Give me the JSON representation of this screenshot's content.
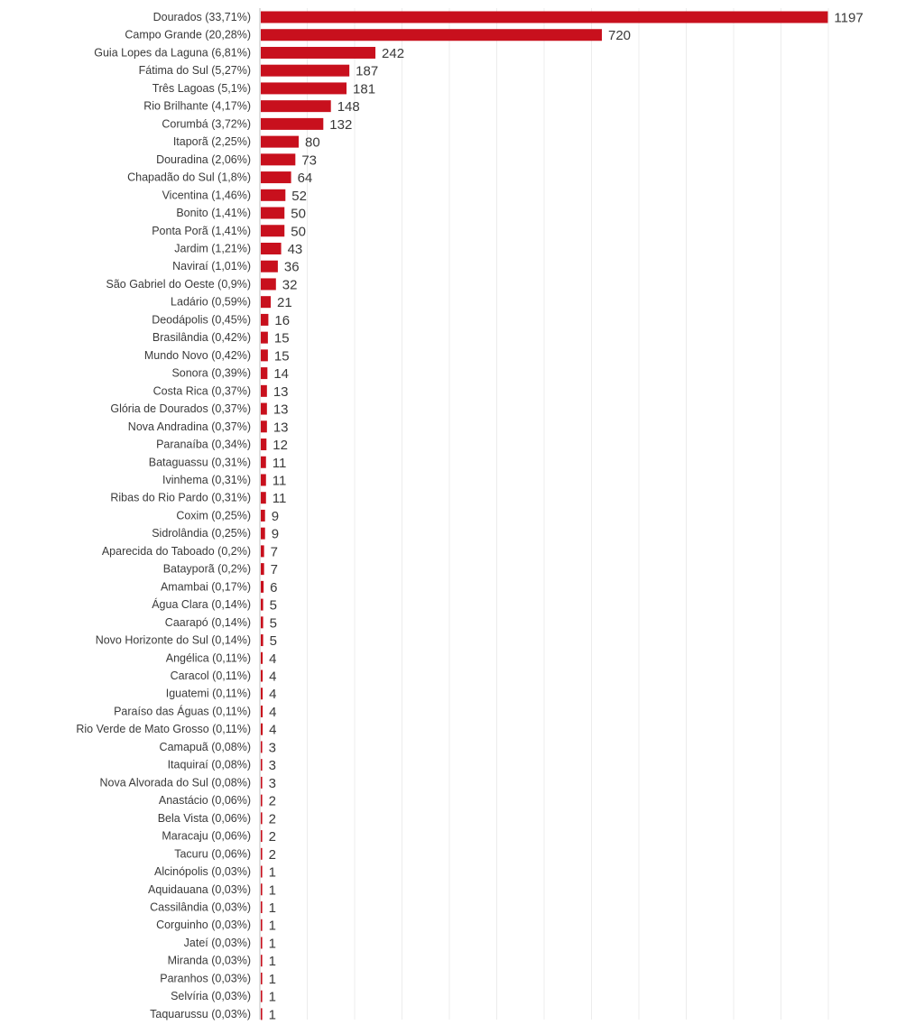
{
  "chart_data": {
    "type": "bar",
    "orientation": "horizontal",
    "title": "",
    "xlabel": "",
    "ylabel": "",
    "xlim": [
      0,
      1200
    ],
    "grid": true,
    "legend": "none",
    "bar_color": "#c8101d",
    "categories": [
      "Dourados (33,71%)",
      "Campo Grande (20,28%)",
      "Guia Lopes da Laguna (6,81%)",
      "Fátima do Sul (5,27%)",
      "Três Lagoas (5,1%)",
      "Rio Brilhante (4,17%)",
      "Corumbá (3,72%)",
      "Itaporã (2,25%)",
      "Douradina (2,06%)",
      "Chapadão do Sul (1,8%)",
      "Vicentina (1,46%)",
      "Bonito (1,41%)",
      "Ponta Porã (1,41%)",
      "Jardim (1,21%)",
      "Naviraí (1,01%)",
      "São Gabriel do Oeste (0,9%)",
      "Ladário (0,59%)",
      "Deodápolis (0,45%)",
      "Brasilândia (0,42%)",
      "Mundo Novo (0,42%)",
      "Sonora (0,39%)",
      "Costa Rica (0,37%)",
      "Glória de Dourados (0,37%)",
      "Nova Andradina (0,37%)",
      "Paranaíba (0,34%)",
      "Bataguassu (0,31%)",
      "Ivinhema (0,31%)",
      "Ribas do Rio Pardo (0,31%)",
      "Coxim (0,25%)",
      "Sidrolândia (0,25%)",
      "Aparecida do Taboado (0,2%)",
      "Batayporã (0,2%)",
      "Amambai (0,17%)",
      "Água Clara (0,14%)",
      "Caarapó (0,14%)",
      "Novo Horizonte do Sul (0,14%)",
      "Angélica (0,11%)",
      "Caracol (0,11%)",
      "Iguatemi (0,11%)",
      "Paraíso das Águas (0,11%)",
      "Rio Verde de Mato Grosso (0,11%)",
      "Camapuã (0,08%)",
      "Itaquiraí (0,08%)",
      "Nova Alvorada do Sul (0,08%)",
      "Anastácio (0,06%)",
      "Bela Vista (0,06%)",
      "Maracaju (0,06%)",
      "Tacuru (0,06%)",
      "Alcinópolis (0,03%)",
      "Aquidauana (0,03%)",
      "Cassilândia (0,03%)",
      "Corguinho (0,03%)",
      "Jateí (0,03%)",
      "Miranda (0,03%)",
      "Paranhos (0,03%)",
      "Selvíria (0,03%)",
      "Taquarussu (0,03%)"
    ],
    "values": [
      1197,
      720,
      242,
      187,
      181,
      148,
      132,
      80,
      73,
      64,
      52,
      50,
      50,
      43,
      36,
      32,
      21,
      16,
      15,
      15,
      14,
      13,
      13,
      13,
      12,
      11,
      11,
      11,
      9,
      9,
      7,
      7,
      6,
      5,
      5,
      5,
      4,
      4,
      4,
      4,
      4,
      3,
      3,
      3,
      2,
      2,
      2,
      2,
      1,
      1,
      1,
      1,
      1,
      1,
      1,
      1,
      1
    ]
  }
}
